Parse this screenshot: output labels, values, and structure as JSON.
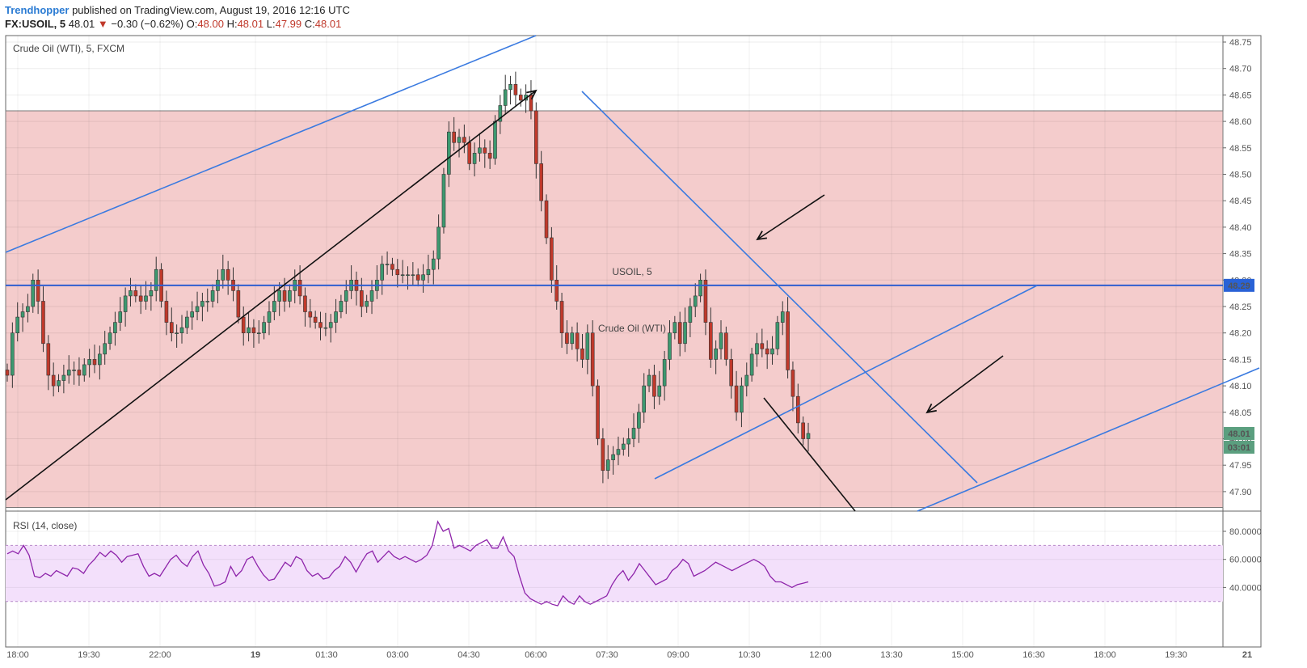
{
  "header": {
    "author": "Trendhopper",
    "published_text": " published on TradingView.com, August 19, 2016 12:16 UTC"
  },
  "quote": {
    "symbol": "FX:USOIL, 5",
    "last": "48.01",
    "change": "−0.30 (−0.62%)",
    "open_label": "O:",
    "open": "48.00",
    "high_label": "H:",
    "high": "48.01",
    "low_label": "L:",
    "low": "47.99",
    "close_label": "C:",
    "close": "48.01"
  },
  "colors": {
    "bull": "#3d9970",
    "bear": "#c0392b",
    "trendline": "#3a7ae0",
    "arrow": "#111111",
    "zone_fill": "#f4cccc",
    "zone_border": "#777777",
    "rsi_line": "#8e24aa",
    "rsi_band": "#f3e0fb",
    "price_badge": "#5b9f7f",
    "level_badge": "#2962d6"
  },
  "chart_data": [
    {
      "type": "candlestick",
      "title": "Crude Oil (WTI), 5, FXCM",
      "watermark_symbol": "USOIL, 5",
      "watermark_name": "Crude Oil (WTI)",
      "x_ticks": [
        "18:00",
        "19:30",
        "22:00",
        "19",
        "01:30",
        "03:00",
        "04:30",
        "06:00",
        "07:30",
        "09:00",
        "10:30",
        "12:00",
        "13:30",
        "15:00",
        "16:30",
        "18:00",
        "19:30",
        "21"
      ],
      "y_ticks": [
        "48.75",
        "48.70",
        "48.65",
        "48.60",
        "48.55",
        "48.50",
        "48.45",
        "48.40",
        "48.35",
        "48.30",
        "48.25",
        "48.20",
        "48.15",
        "48.10",
        "48.05",
        "48.00",
        "47.95",
        "47.90"
      ],
      "ylim": [
        47.87,
        48.78
      ],
      "resistance_zone": [
        47.87,
        48.62
      ],
      "horizontal_level": 48.29,
      "horizontal_level_label": "48.29",
      "last_price": 48.01,
      "last_price_label": "48.01",
      "countdown_label": "03:01",
      "close_prices": [
        48.12,
        48.2,
        48.23,
        48.24,
        48.25,
        48.3,
        48.26,
        48.18,
        48.12,
        48.1,
        48.11,
        48.12,
        48.13,
        48.13,
        48.12,
        48.14,
        48.15,
        48.14,
        48.16,
        48.18,
        48.2,
        48.22,
        48.24,
        48.27,
        48.28,
        48.27,
        48.26,
        48.27,
        48.28,
        48.32,
        48.26,
        48.22,
        48.2,
        48.2,
        48.21,
        48.23,
        48.24,
        48.25,
        48.26,
        48.26,
        48.28,
        48.3,
        48.32,
        48.3,
        48.28,
        48.23,
        48.2,
        48.21,
        48.2,
        48.2,
        48.22,
        48.24,
        48.26,
        48.28,
        48.26,
        48.28,
        48.3,
        48.27,
        48.24,
        48.23,
        48.22,
        48.21,
        48.21,
        48.22,
        48.24,
        48.26,
        48.28,
        48.3,
        48.28,
        48.25,
        48.26,
        48.28,
        48.3,
        48.33,
        48.33,
        48.32,
        48.31,
        48.31,
        48.31,
        48.31,
        48.3,
        48.31,
        48.32,
        48.34,
        48.4,
        48.5,
        48.58,
        48.56,
        48.57,
        48.56,
        48.52,
        48.54,
        48.55,
        48.54,
        48.53,
        48.6,
        48.63,
        48.66,
        48.67,
        48.65,
        48.64,
        48.65,
        48.62,
        48.52,
        48.45,
        48.38,
        48.3,
        48.26,
        48.2,
        48.18,
        48.2,
        48.17,
        48.15,
        48.2,
        48.1,
        48.0,
        47.94,
        47.96,
        47.97,
        47.98,
        47.99,
        48.0,
        48.02,
        48.05,
        48.1,
        48.12,
        48.08,
        48.1,
        48.15,
        48.2,
        48.22,
        48.18,
        48.22,
        48.25,
        48.27,
        48.3,
        48.22,
        48.15,
        48.17,
        48.2,
        48.15,
        48.1,
        48.05,
        48.1,
        48.12,
        48.16,
        48.18,
        48.17,
        48.16,
        48.17,
        48.22,
        48.24,
        48.13,
        48.08,
        48.03,
        48.0,
        48.01
      ]
    },
    {
      "type": "line",
      "title": "RSI (14, close)",
      "y_ticks": [
        "80.0000",
        "60.0000",
        "40.0000"
      ],
      "ylim": [
        24,
        88
      ],
      "band": [
        30,
        70
      ],
      "values": [
        64,
        66,
        64,
        70,
        63,
        48,
        47,
        50,
        48,
        52,
        50,
        48,
        54,
        53,
        50,
        56,
        60,
        65,
        62,
        66,
        63,
        58,
        62,
        63,
        64,
        55,
        48,
        50,
        48,
        54,
        60,
        63,
        58,
        55,
        62,
        66,
        56,
        50,
        41,
        42,
        44,
        55,
        48,
        52,
        60,
        62,
        55,
        49,
        45,
        46,
        52,
        58,
        55,
        62,
        60,
        52,
        48,
        50,
        46,
        47,
        52,
        55,
        62,
        58,
        51,
        58,
        64,
        66,
        58,
        62,
        66,
        62,
        60,
        62,
        60,
        58,
        60,
        63,
        70,
        87,
        80,
        82,
        68,
        70,
        68,
        66,
        70,
        72,
        74,
        68,
        68,
        76,
        66,
        62,
        48,
        36,
        32,
        30,
        28,
        30,
        28,
        27,
        34,
        30,
        28,
        34,
        30,
        28,
        30,
        32,
        34,
        42,
        48,
        52,
        45,
        50,
        57,
        52,
        47,
        42,
        44,
        46,
        52,
        55,
        60,
        57,
        48,
        50,
        52,
        55,
        58,
        56,
        54,
        52,
        54,
        56,
        58,
        60,
        58,
        55,
        48,
        44,
        44,
        42,
        40,
        42,
        43,
        44
      ]
    }
  ]
}
